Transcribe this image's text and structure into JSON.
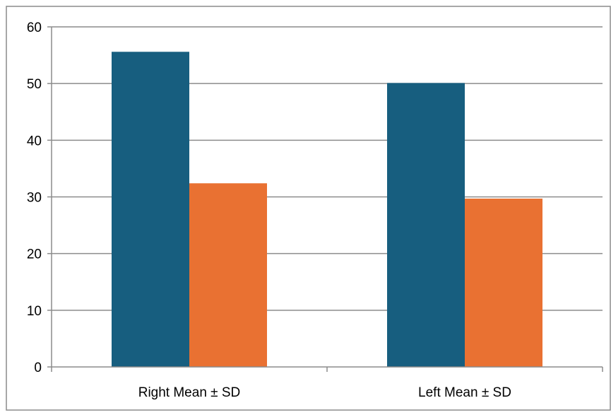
{
  "chart_data": {
    "type": "bar",
    "title": "",
    "xlabel": "",
    "ylabel": "",
    "categories": [
      "Right Mean ± SD",
      "Left Mean ± SD"
    ],
    "series": [
      {
        "color": "#175E7F",
        "values": [
          55.6,
          50.1
        ]
      },
      {
        "color": "#E97132",
        "values": [
          32.4,
          29.7
        ]
      }
    ],
    "ylim": [
      0,
      60
    ],
    "yticks": [
      0,
      10,
      20,
      30,
      40,
      50,
      60
    ],
    "grid": true,
    "legend": "none"
  }
}
